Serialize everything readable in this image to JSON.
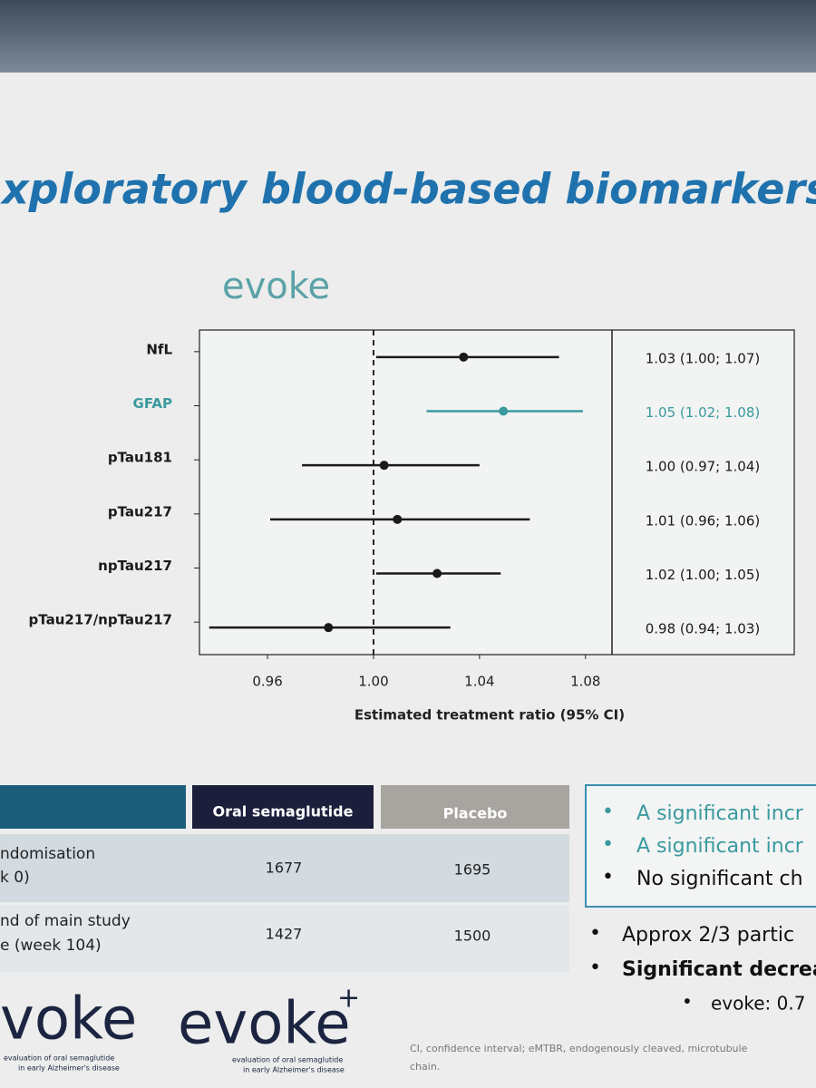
{
  "slide": {
    "title": "xploratory blood-based biomarkers - r"
  },
  "chart_data": {
    "type": "forest",
    "title": "evoke",
    "x_label": "Estimated treatment ratio (95% CI)",
    "categories": [
      "NfL",
      "GFAP",
      "pTau181",
      "pTau217",
      "npTau217",
      "pTau217/npTau217"
    ],
    "values": [
      1.034,
      1.049,
      1.004,
      1.009,
      1.024,
      0.983
    ],
    "lower": [
      1.001,
      1.02,
      0.973,
      0.961,
      1.001,
      0.938
    ],
    "upper": [
      1.07,
      1.079,
      1.04,
      1.059,
      1.048,
      1.029
    ],
    "value_labels": [
      "1.03 (1.00; 1.07)",
      "1.05 (1.02; 1.08)",
      "1.00 (0.97; 1.04)",
      "1.01 (0.96; 1.06)",
      "1.02 (1.00; 1.05)",
      "0.98 (0.94; 1.03)"
    ],
    "colors": [
      "#1a1a1a",
      "#3a9a9e",
      "#1a1a1a",
      "#1a1a1a",
      "#1a1a1a",
      "#1a1a1a"
    ],
    "reference_line": 1,
    "xlim": [
      0.935,
      1.09
    ],
    "xticks": [
      0.96,
      {
        "value": 1,
        "label": "1.00"
      },
      1.04,
      1.08
    ]
  },
  "table": {
    "header": [
      "Oral semaglutide",
      "Placebo"
    ],
    "rows": [
      {
        "label": [
          "ndomisation",
          "k 0)"
        ],
        "cells": [
          "1677",
          "1695"
        ]
      },
      {
        "label": [
          "nd of main study",
          "e (week 104)"
        ],
        "cells": [
          "1427",
          "1500"
        ]
      }
    ]
  },
  "box_bullets": [
    "A significant incr",
    "A significant incr",
    "No significant ch"
  ],
  "bullets": [
    "Approx 2/3 partic",
    "Significant decrea"
  ],
  "sub_bullet": "evoke: 0.7",
  "logos": [
    {
      "name": "voke",
      "tagline": [
        "evaluation of oral semaglutide",
        "in early Alzheimer's disease"
      ]
    },
    {
      "name": "evoke",
      "sup": "+",
      "tagline": [
        "evaluation of oral semaglutide",
        "in early Alzheimer's disease"
      ]
    }
  ],
  "footnote": [
    "CI, confidence interval; eMTBR, endogenously cleaved, microtubule",
    "chain."
  ]
}
